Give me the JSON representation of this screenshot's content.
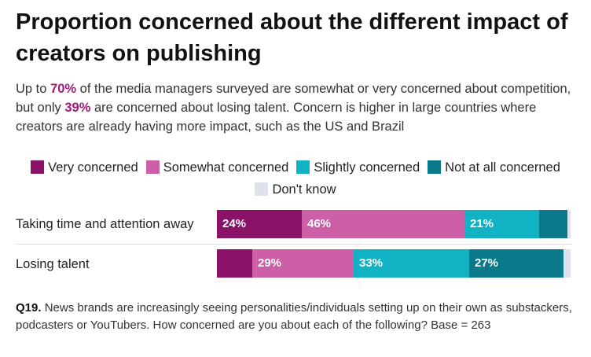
{
  "title": "Proportion concerned about the different impact of creators on publishing",
  "subtitle": {
    "p1": "Up to ",
    "h1": "70%",
    "p2": " of the media managers surveyed are somewhat or very concerned about competition, but only ",
    "h2": "39%",
    "p3": " are concerned about losing talent. Concern is higher in large countries where creators are already having more impact, such as the US and Brazil"
  },
  "footnote": {
    "label": "Q19.",
    "text": " News brands are increasingly seeing personalities/individuals setting up on their own as substackers, podcasters or YouTubers. How concerned are you about each of the following? Base = 263"
  },
  "colors": {
    "very": "#8a1367",
    "somewhat": "#cc5fa6",
    "slightly": "#11b2c4",
    "notatall": "#0a7a8a",
    "dontknow": "#dde3e8",
    "highlight": "#a5177a"
  },
  "chart_data": {
    "type": "bar",
    "orientation": "horizontal",
    "stacked": true,
    "percent_scale": true,
    "categories": [
      "Taking time and attention away",
      "Losing talent"
    ],
    "series": [
      {
        "name": "Very concerned",
        "key": "very",
        "values": [
          24,
          10
        ],
        "labels": [
          "24%",
          ""
        ]
      },
      {
        "name": "Somewhat concerned",
        "key": "somewhat",
        "values": [
          46,
          29
        ],
        "labels": [
          "46%",
          "29%"
        ]
      },
      {
        "name": "Slightly concerned",
        "key": "slightly",
        "values": [
          21,
          33
        ],
        "labels": [
          "21%",
          "33%"
        ]
      },
      {
        "name": "Not at all concerned",
        "key": "notatall",
        "values": [
          8,
          27
        ],
        "labels": [
          "",
          "27%"
        ]
      },
      {
        "name": "Don't know",
        "key": "dontknow",
        "values": [
          1,
          2
        ],
        "labels": [
          "",
          ""
        ]
      }
    ],
    "legend_position": "top"
  }
}
